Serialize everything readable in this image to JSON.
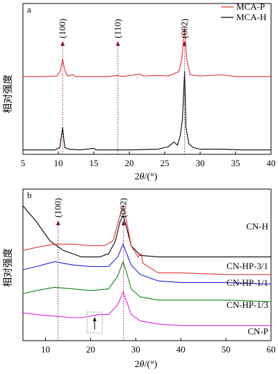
{
  "chart_data": [
    {
      "panel": "a",
      "type": "line",
      "xlabel": "2θ/(°)",
      "ylabel": "相对强度",
      "xlim": [
        5,
        40
      ],
      "xticks": [
        5,
        10,
        15,
        20,
        25,
        30,
        35,
        40
      ],
      "legend": [
        "MCA-P",
        "MCA-H"
      ],
      "legend_placement": "top-right",
      "peak_labels": [
        {
          "text": "(100)",
          "x": 10.6
        },
        {
          "text": "(110)",
          "x": 18.4
        },
        {
          "text": "(002)",
          "x": 27.8
        }
      ],
      "series": [
        {
          "name": "MCA-P",
          "color": "#e03030",
          "points": [
            [
              5,
              0.02
            ],
            [
              8,
              0.02
            ],
            [
              9.8,
              0.03
            ],
            [
              10.3,
              0.12
            ],
            [
              10.6,
              0.3
            ],
            [
              10.9,
              0.12
            ],
            [
              11.3,
              0.03
            ],
            [
              12,
              0.05
            ],
            [
              12.4,
              0.02
            ],
            [
              15,
              0.02
            ],
            [
              17,
              0.02
            ],
            [
              18.3,
              0.04
            ],
            [
              19,
              0.02
            ],
            [
              21.5,
              0.06
            ],
            [
              22,
              0.03
            ],
            [
              24,
              0.04
            ],
            [
              25.5,
              0.03
            ],
            [
              27,
              0.1
            ],
            [
              27.4,
              0.3
            ],
            [
              27.8,
              0.8
            ],
            [
              28.1,
              0.3
            ],
            [
              28.6,
              0.05
            ],
            [
              30,
              0.03
            ],
            [
              33,
              0.05
            ],
            [
              35,
              0.02
            ],
            [
              40,
              0.02
            ]
          ]
        },
        {
          "name": "MCA-H",
          "color": "#000000",
          "points": [
            [
              5,
              0.02
            ],
            [
              9.5,
              0.02
            ],
            [
              10.2,
              0.05
            ],
            [
              10.6,
              0.3
            ],
            [
              10.9,
              0.05
            ],
            [
              11.5,
              0.03
            ],
            [
              13,
              0.02
            ],
            [
              15,
              0.04
            ],
            [
              15.3,
              0.02
            ],
            [
              20,
              0.02
            ],
            [
              24,
              0.03
            ],
            [
              25.5,
              0.06
            ],
            [
              26.3,
              0.12
            ],
            [
              26.8,
              0.08
            ],
            [
              27.2,
              0.2
            ],
            [
              27.5,
              0.4
            ],
            [
              27.8,
              1.0
            ],
            [
              28.0,
              0.3
            ],
            [
              28.4,
              0.1
            ],
            [
              29,
              0.05
            ],
            [
              30,
              0.03
            ],
            [
              33,
              0.03
            ],
            [
              36,
              0.02
            ],
            [
              40,
              0.02
            ]
          ]
        }
      ]
    },
    {
      "panel": "b",
      "type": "line",
      "xlabel": "2θ/(°)",
      "ylabel": "相对强度",
      "xlim": [
        5,
        60
      ],
      "xticks": [
        10,
        20,
        30,
        40,
        50,
        60
      ],
      "peak_labels": [
        {
          "text": "(100)",
          "x": 12.8
        },
        {
          "text": "(002)",
          "x": 27.3
        }
      ],
      "series": [
        {
          "name": "CN-H",
          "color": "#000000",
          "points": [
            [
              5,
              0.8
            ],
            [
              8,
              0.7
            ],
            [
              11,
              0.58
            ],
            [
              14,
              0.52
            ],
            [
              18,
              0.48
            ],
            [
              22,
              0.48
            ],
            [
              24,
              0.5
            ],
            [
              25.5,
              0.58
            ],
            [
              26.5,
              0.7
            ],
            [
              27.2,
              0.74
            ],
            [
              28,
              0.66
            ],
            [
              29,
              0.55
            ],
            [
              31,
              0.49
            ],
            [
              35,
              0.48
            ],
            [
              40,
              0.48
            ],
            [
              50,
              0.48
            ],
            [
              60,
              0.48
            ]
          ]
        },
        {
          "name": "CN-HP-3/1",
          "color": "#e03030",
          "points": [
            [
              5,
              0.52
            ],
            [
              8,
              0.54
            ],
            [
              12,
              0.56
            ],
            [
              16,
              0.56
            ],
            [
              20,
              0.55
            ],
            [
              23,
              0.55
            ],
            [
              25,
              0.58
            ],
            [
              26.3,
              0.72
            ],
            [
              27.2,
              0.8
            ],
            [
              28,
              0.7
            ],
            [
              29,
              0.55
            ],
            [
              30.5,
              0.48
            ],
            [
              31.2,
              0.5
            ],
            [
              31.6,
              0.44
            ],
            [
              35,
              0.38
            ],
            [
              40,
              0.38
            ],
            [
              50,
              0.37
            ],
            [
              60,
              0.37
            ]
          ]
        },
        {
          "name": "CN-HP-1/1",
          "color": "#2020e0",
          "points": [
            [
              5,
              0.4
            ],
            [
              8,
              0.42
            ],
            [
              12,
              0.45
            ],
            [
              16,
              0.43
            ],
            [
              20,
              0.42
            ],
            [
              24,
              0.42
            ],
            [
              26,
              0.48
            ],
            [
              27.2,
              0.56
            ],
            [
              28,
              0.5
            ],
            [
              29,
              0.43
            ],
            [
              31,
              0.37
            ],
            [
              35,
              0.33
            ],
            [
              40,
              0.32
            ],
            [
              50,
              0.32
            ],
            [
              60,
              0.31
            ]
          ]
        },
        {
          "name": "CN-HP-1/3",
          "color": "#108010",
          "points": [
            [
              5,
              0.25
            ],
            [
              8,
              0.27
            ],
            [
              12,
              0.29
            ],
            [
              16,
              0.28
            ],
            [
              20,
              0.27
            ],
            [
              24,
              0.28
            ],
            [
              26,
              0.36
            ],
            [
              27.2,
              0.45
            ],
            [
              28,
              0.38
            ],
            [
              29,
              0.28
            ],
            [
              31,
              0.23
            ],
            [
              35,
              0.21
            ],
            [
              40,
              0.21
            ],
            [
              50,
              0.21
            ],
            [
              60,
              0.2
            ]
          ]
        },
        {
          "name": "CN-P",
          "color": "#e020e0",
          "points": [
            [
              5,
              0.13
            ],
            [
              8,
              0.12
            ],
            [
              12,
              0.11
            ],
            [
              16,
              0.1
            ],
            [
              18,
              0.1
            ],
            [
              20,
              0.11
            ],
            [
              22,
              0.12
            ],
            [
              24,
              0.12
            ],
            [
              26,
              0.18
            ],
            [
              27.2,
              0.26
            ],
            [
              28,
              0.2
            ],
            [
              29,
              0.12
            ],
            [
              31,
              0.08
            ],
            [
              35,
              0.06
            ],
            [
              40,
              0.05
            ],
            [
              50,
              0.05
            ],
            [
              60,
              0.05
            ]
          ]
        }
      ]
    }
  ]
}
